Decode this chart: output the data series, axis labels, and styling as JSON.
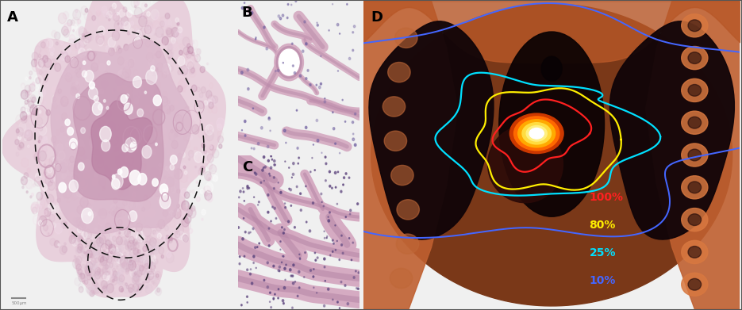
{
  "figure_width": 9.35,
  "figure_height": 3.91,
  "dpi": 100,
  "background_color": "#f0f0f0",
  "border_color": "#444444",
  "outer_border_color": "#555555",
  "panel_labels": [
    "A",
    "B",
    "C",
    "D"
  ],
  "panel_label_color": "#000000",
  "panel_label_fontsize": 13,
  "panel_label_fontweight": "bold",
  "legend_entries": [
    {
      "label": "100%",
      "color": "#ff2020"
    },
    {
      "label": "80%",
      "color": "#ffee00"
    },
    {
      "label": "25%",
      "color": "#00e0ff"
    },
    {
      "label": "10%",
      "color": "#4466ff"
    }
  ],
  "legend_fontsize": 10,
  "legend_fontweight": "bold",
  "panel_A": {
    "bg_color": "#ffffff",
    "tissue_outer": "#e8d0dc",
    "tissue_mid": "#dbb8cc",
    "tissue_dark": "#c898b4",
    "tissue_deep": "#b87ca0",
    "dashed_color": "#111111",
    "scale_bar_color": "#888888"
  },
  "panel_B": {
    "bg_color": "#ffffff",
    "wall_color": "#d4a8c0",
    "wall_dark": "#b888a8",
    "space_color": "#ffffff"
  },
  "panel_C": {
    "bg_color": "#ffffff",
    "gland_color": "#d4a8c0",
    "gland_dark": "#b888a8",
    "space_color": "#ffffff"
  },
  "panel_D": {
    "bg_dark": "#1a0800",
    "bg_chest": "#5a2010",
    "bg_lung_l": "#180608",
    "bg_lung_r": "#180608",
    "bg_spine": "#c87848",
    "tumor_white": "#ffffff",
    "tumor_yellow": "#ffe860",
    "tumor_orange": "#ff9020",
    "tumor_red": "#cc3000",
    "contour_100": "#ff2020",
    "contour_80": "#ffee00",
    "contour_25": "#00e0ff",
    "contour_10": "#4466ff",
    "contour_lw": 1.6
  }
}
